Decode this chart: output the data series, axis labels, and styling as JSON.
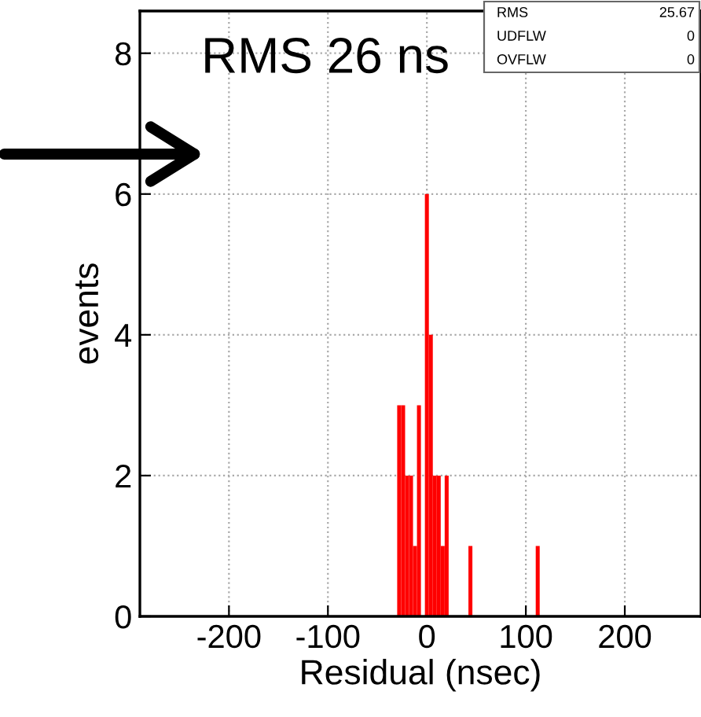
{
  "chart_data": {
    "type": "histogram",
    "xlabel": "Residual (nsec)",
    "ylabel": "events",
    "bins": [
      -30,
      -26,
      -22,
      -18,
      -14,
      -10,
      -6,
      -2,
      2,
      6,
      10,
      14,
      18,
      22,
      26,
      30,
      34,
      38,
      42,
      46,
      50,
      54,
      58,
      62,
      66,
      70,
      74,
      78,
      82,
      86,
      90,
      94,
      98,
      102,
      106,
      110,
      114
    ],
    "values": [
      3,
      3,
      2,
      2,
      1,
      3,
      0,
      6,
      4,
      2,
      2,
      1,
      2,
      0,
      0,
      0,
      0,
      0,
      1,
      0,
      0,
      0,
      0,
      0,
      0,
      0,
      0,
      0,
      0,
      0,
      0,
      0,
      0,
      0,
      0,
      1
    ],
    "color": "#ff0000",
    "xlim": [
      -290,
      277
    ],
    "ylim": [
      0,
      8.6
    ],
    "xticks": [
      -200,
      -100,
      0,
      100,
      200
    ],
    "yticks": [
      0,
      2,
      4,
      6,
      8
    ],
    "grid": true,
    "annotations": [
      "RMS 26 ns",
      "RMS",
      "25.67",
      "UDFLW",
      "0",
      "OVFLW",
      "0"
    ]
  }
}
